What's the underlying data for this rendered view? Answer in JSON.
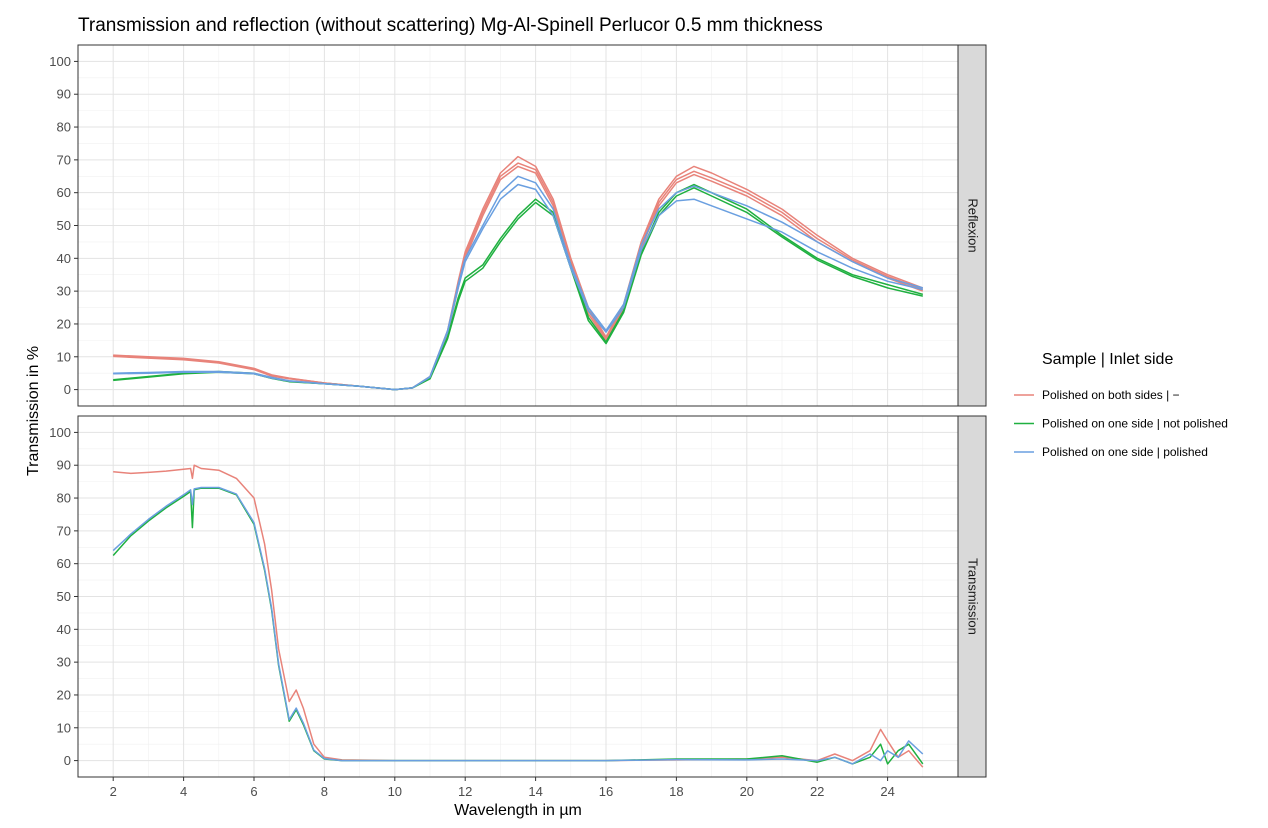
{
  "chart_data": {
    "type": "line",
    "title": "Transmission and reflection (without scattering) Mg-Al-Spinell Perlucor 0.5 mm thickness",
    "xlabel": "Wavelength in µm",
    "ylabel": "Transmission in %",
    "xlim": [
      1.0,
      26.0
    ],
    "ylim": [
      -5,
      105
    ],
    "x_ticks": [
      2,
      4,
      6,
      8,
      10,
      12,
      14,
      16,
      18,
      20,
      22,
      24
    ],
    "y_ticks": [
      0,
      10,
      20,
      30,
      40,
      50,
      60,
      70,
      80,
      90,
      100
    ],
    "grid": true,
    "legend": {
      "title": "Sample | Inlet side",
      "position": "right",
      "entries": [
        {
          "label": "Polished on both sides | −",
          "color": "#e8837a"
        },
        {
          "label": "Polished on one side | not polished",
          "color": "#1fb040"
        },
        {
          "label": "Polished on one side | polished",
          "color": "#6a9fe0"
        }
      ]
    },
    "facets": [
      {
        "label": "Reflexion",
        "series": [
          {
            "group": 0,
            "x": [
              2,
              3,
              4,
              5,
              6,
              6.5,
              7,
              8,
              9,
              10,
              10.5,
              11,
              11.5,
              11.8,
              12,
              12.5,
              13,
              13.5,
              14,
              14.5,
              15,
              15.5,
              16,
              16.5,
              17,
              17.5,
              18,
              18.5,
              19,
              20,
              21,
              22,
              23,
              24,
              25
            ],
            "y": [
              10.5,
              10,
              9.5,
              8.5,
              6.5,
              4.5,
              3.5,
              2,
              1,
              0,
              0.5,
              4,
              18,
              33,
              42,
              55,
              66,
              71,
              68,
              58,
              40,
              25,
              16,
              26,
              45,
              58,
              65,
              68,
              66,
              61,
              55,
              47,
              40,
              35,
              31
            ]
          },
          {
            "group": 0,
            "x": [
              2,
              3,
              4,
              5,
              6,
              6.5,
              7,
              8,
              9,
              10,
              10.5,
              11,
              11.5,
              11.8,
              12,
              12.5,
              13,
              13.5,
              14,
              14.5,
              15,
              15.5,
              16,
              16.5,
              17,
              17.5,
              18,
              18.5,
              19,
              20,
              21,
              22,
              23,
              24,
              25
            ],
            "y": [
              10.3,
              9.8,
              9.3,
              8.3,
              6.3,
              4.3,
              3.4,
              2,
              1,
              0,
              0.5,
              3.8,
              17.5,
              32,
              41,
              54,
              65,
              69,
              67,
              57,
              39,
              24,
              15.5,
              25,
              44,
              57,
              64,
              66.5,
              64.5,
              60,
              54,
              46,
              39.5,
              34.5,
              30.5
            ]
          },
          {
            "group": 0,
            "x": [
              2,
              3,
              4,
              5,
              6,
              6.5,
              7,
              8,
              9,
              10,
              10.5,
              11,
              11.5,
              11.8,
              12,
              12.5,
              13,
              13.5,
              14,
              14.5,
              15,
              15.5,
              16,
              16.5,
              17,
              17.5,
              18,
              18.5,
              19,
              20,
              21,
              22,
              23,
              24,
              25
            ],
            "y": [
              10.1,
              9.6,
              9.1,
              8.1,
              6.1,
              4.1,
              3.3,
              2,
              1,
              0,
              0.5,
              3.6,
              17,
              31,
              40,
              53,
              64,
              68,
              66,
              56,
              38,
              23,
              15,
              24.5,
              43,
              56,
              63,
              65.5,
              63.5,
              59,
              53,
              45,
              39,
              34,
              30
            ]
          },
          {
            "group": 1,
            "x": [
              2,
              3,
              4,
              5,
              6,
              6.5,
              7,
              8,
              9,
              10,
              10.5,
              11,
              11.5,
              11.8,
              12,
              12.5,
              13,
              13.5,
              14,
              14.5,
              15,
              15.5,
              16,
              16.5,
              17,
              17.5,
              18,
              18.5,
              19,
              20,
              21,
              22,
              23,
              24,
              25
            ],
            "y": [
              3,
              4,
              5,
              5.5,
              5,
              3.5,
              2.5,
              1.8,
              1,
              0,
              0.5,
              3.5,
              16,
              28,
              34,
              38,
              46,
              53,
              58,
              54,
              38,
              22,
              14.5,
              24,
              42,
              54,
              60,
              62.5,
              60,
              55,
              47,
              40,
              35,
              32,
              29
            ]
          },
          {
            "group": 1,
            "x": [
              2,
              3,
              4,
              5,
              6,
              6.5,
              7,
              8,
              9,
              10,
              10.5,
              11,
              11.5,
              11.8,
              12,
              12.5,
              13,
              13.5,
              14,
              14.5,
              15,
              15.5,
              16,
              16.5,
              17,
              17.5,
              18,
              18.5,
              19,
              20,
              21,
              22,
              23,
              24,
              25
            ],
            "y": [
              2.8,
              3.8,
              4.8,
              5.3,
              4.8,
              3.4,
              2.4,
              1.8,
              1,
              0,
              0.5,
              3.3,
              15.5,
              27,
              33,
              37,
              45,
              52,
              57,
              53,
              37,
              21,
              14,
              23.5,
              41,
              53,
              59,
              61.5,
              59,
              54,
              46.5,
              39.5,
              34.5,
              31,
              28.5
            ]
          },
          {
            "group": 2,
            "x": [
              2,
              3,
              4,
              5,
              6,
              6.5,
              7,
              8,
              9,
              10,
              10.5,
              11,
              11.5,
              11.8,
              12,
              12.5,
              13,
              13.5,
              14,
              14.5,
              15,
              15.5,
              16,
              16.5,
              17,
              17.5,
              18,
              18.5,
              19,
              20,
              21,
              22,
              23,
              24,
              25
            ],
            "y": [
              5,
              5.2,
              5.5,
              5.5,
              5,
              3.7,
              2.7,
              1.8,
              1,
              0,
              0.5,
              4,
              18,
              32,
              40,
              50,
              60,
              65,
              63,
              55,
              38,
              25,
              18,
              26,
              44,
              55,
              60,
              62,
              60,
              56,
              51,
              45,
              39,
              34,
              31
            ]
          },
          {
            "group": 2,
            "x": [
              2,
              3,
              4,
              5,
              6,
              6.5,
              7,
              8,
              9,
              10,
              10.5,
              11,
              11.5,
              11.8,
              12,
              12.5,
              13,
              13.5,
              14,
              14.5,
              15,
              15.5,
              16,
              16.5,
              17,
              17.5,
              18,
              18.5,
              19,
              20,
              21,
              22,
              23,
              24,
              25
            ],
            "y": [
              4.8,
              5,
              5.3,
              5.3,
              4.8,
              3.5,
              2.6,
              1.8,
              1,
              0,
              0.5,
              3.8,
              17.5,
              31,
              39,
              49,
              58,
              62.5,
              61,
              53,
              37,
              24,
              17.5,
              25,
              42.5,
              53,
              57.5,
              58,
              56,
              52,
              48,
              42,
              37,
              33,
              30.5
            ]
          }
        ]
      },
      {
        "label": "Transmission",
        "series": [
          {
            "group": 0,
            "x": [
              2,
              2.5,
              3,
              3.5,
              4,
              4.2,
              4.25,
              4.3,
              4.5,
              5,
              5.5,
              6,
              6.3,
              6.5,
              6.7,
              7,
              7.2,
              7.4,
              7.7,
              8,
              8.5,
              10,
              12,
              14,
              16,
              18,
              20,
              21,
              22,
              22.5,
              23,
              23.5,
              23.8,
              24,
              24.3,
              24.6,
              25
            ],
            "y": [
              88,
              87.5,
              87.8,
              88.2,
              88.8,
              89,
              86,
              90,
              89,
              88.5,
              86,
              80,
              66,
              52,
              34,
              18,
              21.5,
              16,
              5,
              1,
              0.2,
              0,
              0,
              0,
              0,
              0.2,
              0.5,
              1,
              0,
              2,
              0,
              3,
              9.5,
              6,
              1,
              3,
              -2
            ]
          },
          {
            "group": 1,
            "x": [
              2,
              2.5,
              3,
              3.5,
              4,
              4.2,
              4.25,
              4.3,
              4.5,
              5,
              5.5,
              6,
              6.3,
              6.5,
              6.7,
              7,
              7.2,
              7.4,
              7.7,
              8,
              8.5,
              10,
              12,
              14,
              16,
              18,
              20,
              21,
              22,
              22.5,
              23,
              23.5,
              23.8,
              24,
              24.3,
              24.6,
              25
            ],
            "y": [
              62.5,
              68.5,
              73,
              77,
              80.5,
              82,
              71,
              82.5,
              83,
              83,
              81,
              72,
              58,
              46,
              29,
              12,
              15.5,
              11,
              3,
              0.5,
              0,
              0,
              0,
              0,
              0,
              0.5,
              0.5,
              1.5,
              -0.5,
              1,
              -1,
              1,
              5,
              -1,
              3,
              5,
              -1
            ]
          },
          {
            "group": 2,
            "x": [
              2,
              2.5,
              3,
              3.5,
              4,
              4.2,
              4.25,
              4.3,
              4.5,
              5,
              5.5,
              6,
              6.3,
              6.5,
              6.7,
              7,
              7.2,
              7.4,
              7.7,
              8,
              8.5,
              10,
              12,
              14,
              16,
              18,
              20,
              21,
              22,
              22.5,
              23,
              23.5,
              23.8,
              24,
              24.3,
              24.6,
              25
            ],
            "y": [
              64,
              69,
              73.5,
              77.5,
              81,
              82.5,
              78,
              82.8,
              83.2,
              83.2,
              81.2,
              72.5,
              58.5,
              46.5,
              29.5,
              12.5,
              16,
              11.5,
              3.2,
              0.6,
              0,
              0,
              0,
              0,
              0,
              0.3,
              0.2,
              0.5,
              0,
              1,
              -1,
              2,
              0,
              3,
              1,
              6,
              2
            ]
          }
        ]
      }
    ]
  }
}
